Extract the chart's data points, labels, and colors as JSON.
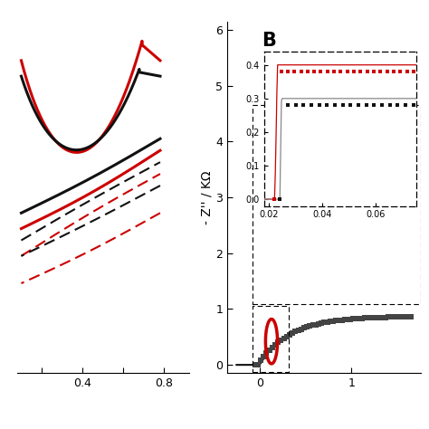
{
  "panel_A": {
    "xlim": [
      0.08,
      0.92
    ],
    "ylim": [
      -2.5,
      2.0
    ],
    "xticks": [
      0.2,
      0.4,
      0.6,
      0.8
    ],
    "xtick_labels": [
      "",
      "0.4",
      "",
      "0.8"
    ]
  },
  "panel_B": {
    "title": "B",
    "ylabel": "- Z'' / KΩ",
    "xlim": [
      -0.35,
      1.75
    ],
    "ylim": [
      -0.15,
      6.15
    ],
    "xticks": [
      0,
      1
    ],
    "yticks": [
      0,
      1,
      2,
      3,
      4,
      5,
      6
    ]
  },
  "inset": {
    "xlim": [
      0.018,
      0.075
    ],
    "ylim": [
      -0.02,
      0.44
    ],
    "xticks": [
      0.02,
      0.04,
      0.06
    ],
    "yticks": [
      0.0,
      0.1,
      0.2,
      0.3,
      0.4
    ]
  },
  "background": "#ffffff",
  "red": "#cc0000",
  "black": "#111111",
  "darkgray": "#444444",
  "gray": "#888888"
}
